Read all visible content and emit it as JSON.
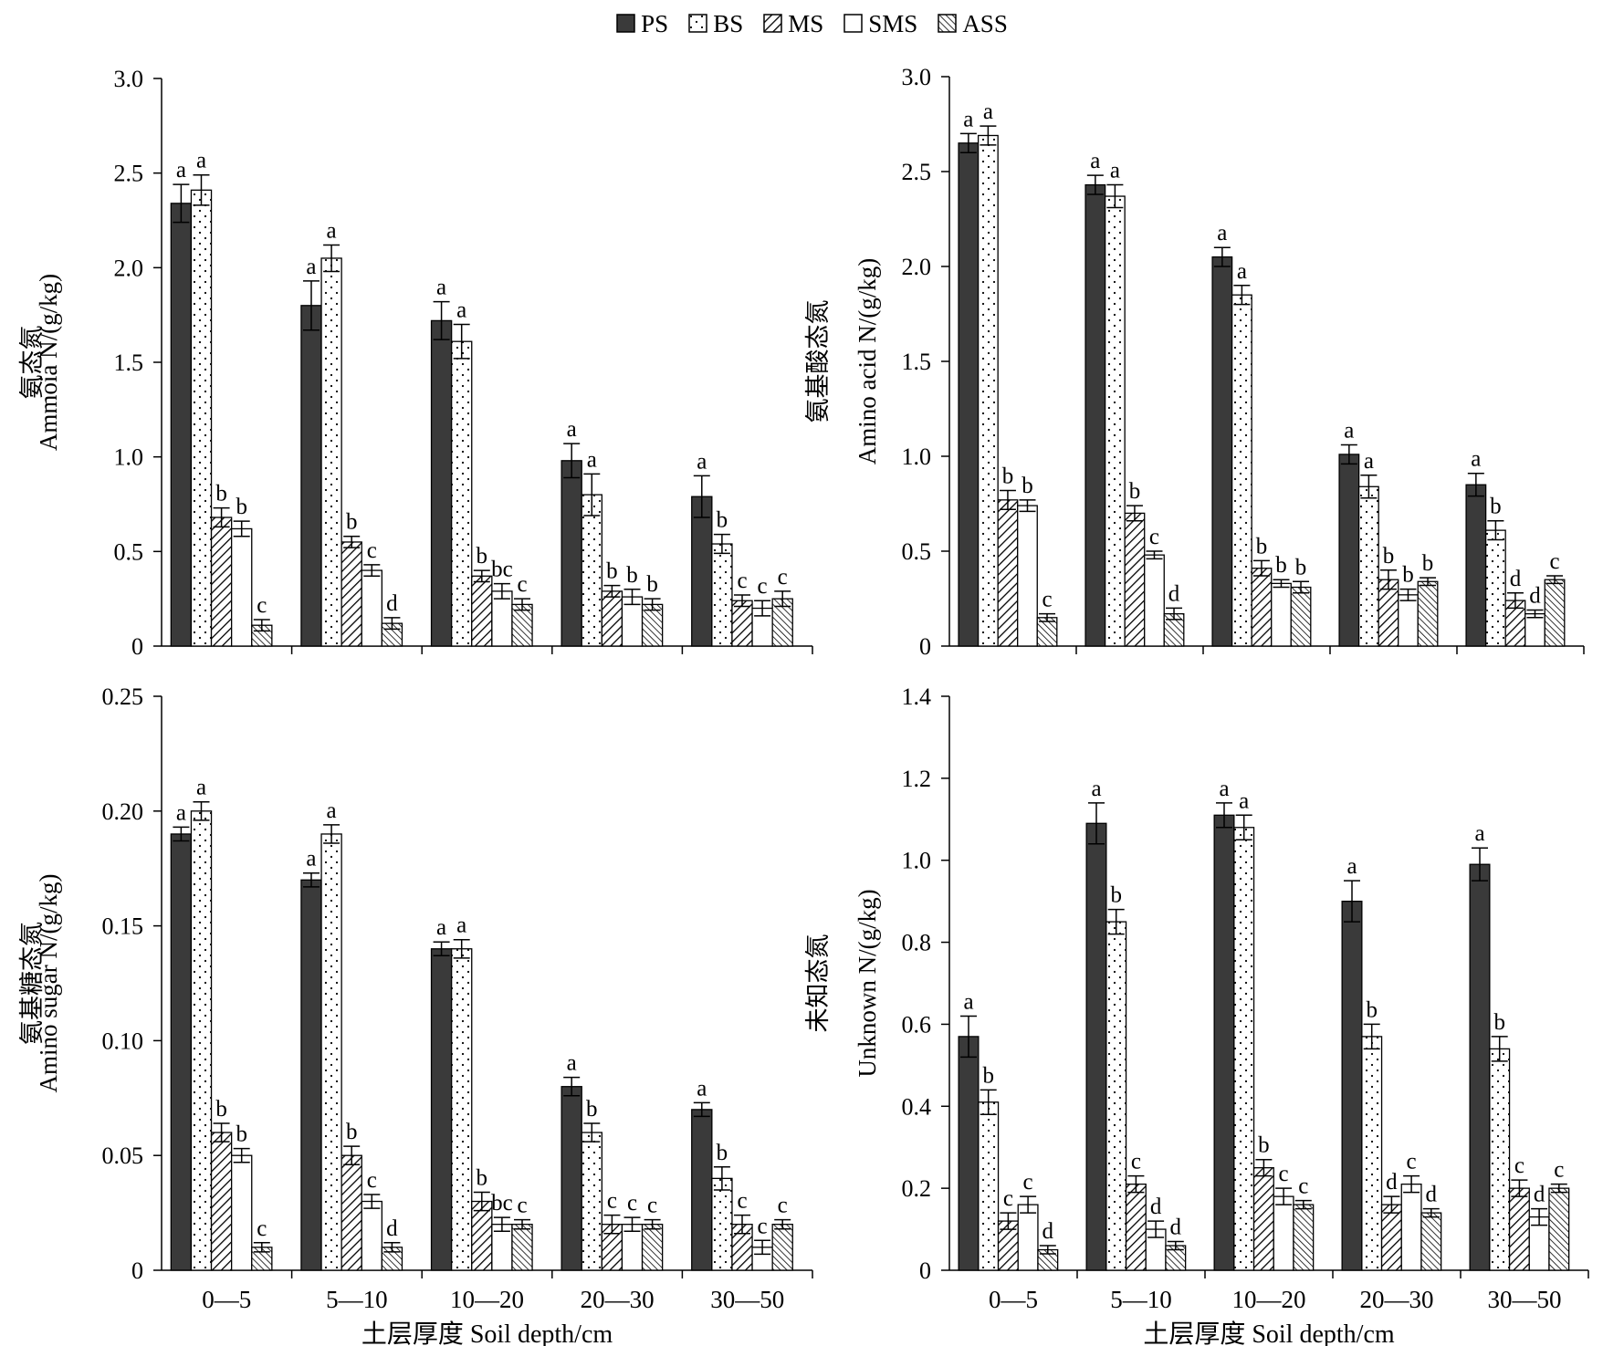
{
  "legend": [
    {
      "label": "PS",
      "pattern": "solid"
    },
    {
      "label": "BS",
      "pattern": "dots"
    },
    {
      "label": "MS",
      "pattern": "diag"
    },
    {
      "label": "SMS",
      "pattern": "white"
    },
    {
      "label": "ASS",
      "pattern": "diag-dense"
    }
  ],
  "colors": {
    "solid_fill": "#3a3a3a",
    "outline": "#000000",
    "background": "#ffffff"
  },
  "chart_data": [
    {
      "type": "bar",
      "ylabel_cn": "氨态氮",
      "ylabel": "Ammoia N/(g/kg)",
      "xlabel": "",
      "categories": [
        "0—5",
        "5—10",
        "10—20",
        "20—30",
        "30—50"
      ],
      "ylim": [
        0,
        3.0
      ],
      "yticks": [
        "0",
        "0.5",
        "1.0",
        "1.5",
        "2.0",
        "2.5",
        "3.0"
      ],
      "series": [
        {
          "name": "PS",
          "values": [
            2.34,
            1.8,
            1.72,
            0.98,
            0.79
          ],
          "errors": [
            0.1,
            0.13,
            0.1,
            0.09,
            0.11
          ],
          "letters": [
            "a",
            "a",
            "a",
            "a",
            "a"
          ]
        },
        {
          "name": "BS",
          "values": [
            2.41,
            2.05,
            1.61,
            0.8,
            0.54
          ],
          "errors": [
            0.08,
            0.07,
            0.09,
            0.11,
            0.05
          ],
          "letters": [
            "a",
            "a",
            "a",
            "a",
            "b"
          ]
        },
        {
          "name": "MS",
          "values": [
            0.68,
            0.55,
            0.37,
            0.29,
            0.24
          ],
          "errors": [
            0.05,
            0.03,
            0.03,
            0.03,
            0.03
          ],
          "letters": [
            "b",
            "b",
            "b",
            "b",
            "c"
          ]
        },
        {
          "name": "SMS",
          "values": [
            0.62,
            0.4,
            0.29,
            0.26,
            0.2
          ],
          "errors": [
            0.04,
            0.03,
            0.04,
            0.04,
            0.04
          ],
          "letters": [
            "b",
            "c",
            "bc",
            "b",
            "c"
          ]
        },
        {
          "name": "ASS",
          "values": [
            0.11,
            0.12,
            0.22,
            0.22,
            0.25
          ],
          "errors": [
            0.03,
            0.03,
            0.03,
            0.03,
            0.04
          ],
          "letters": [
            "c",
            "d",
            "c",
            "b",
            "c"
          ]
        }
      ]
    },
    {
      "type": "bar",
      "ylabel_cn": "氨基酸态氮",
      "ylabel": "Amino acid N/(g/kg)",
      "xlabel": "",
      "categories": [
        "0—5",
        "5—10",
        "10—20",
        "20—30",
        "30—50"
      ],
      "ylim": [
        0,
        3.0
      ],
      "yticks": [
        "0",
        "0.5",
        "1.0",
        "1.5",
        "2.0",
        "2.5",
        "3.0"
      ],
      "series": [
        {
          "name": "PS",
          "values": [
            2.65,
            2.43,
            2.05,
            1.01,
            0.85
          ],
          "errors": [
            0.05,
            0.05,
            0.05,
            0.05,
            0.06
          ],
          "letters": [
            "a",
            "a",
            "a",
            "a",
            "a"
          ]
        },
        {
          "name": "BS",
          "values": [
            2.69,
            2.37,
            1.85,
            0.84,
            0.61
          ],
          "errors": [
            0.05,
            0.06,
            0.05,
            0.06,
            0.05
          ],
          "letters": [
            "a",
            "a",
            "a",
            "a",
            "b"
          ]
        },
        {
          "name": "MS",
          "values": [
            0.77,
            0.7,
            0.41,
            0.35,
            0.24
          ],
          "errors": [
            0.05,
            0.04,
            0.04,
            0.05,
            0.04
          ],
          "letters": [
            "b",
            "b",
            "b",
            "b",
            "d"
          ]
        },
        {
          "name": "SMS",
          "values": [
            0.74,
            0.48,
            0.33,
            0.27,
            0.17
          ],
          "errors": [
            0.03,
            0.02,
            0.02,
            0.03,
            0.02
          ],
          "letters": [
            "b",
            "c",
            "b",
            "b",
            "d"
          ]
        },
        {
          "name": "ASS",
          "values": [
            0.15,
            0.17,
            0.31,
            0.34,
            0.35
          ],
          "errors": [
            0.02,
            0.03,
            0.03,
            0.02,
            0.02
          ],
          "letters": [
            "c",
            "d",
            "b",
            "b",
            "c"
          ]
        }
      ]
    },
    {
      "type": "bar",
      "ylabel_cn": "氨基糖态氮",
      "ylabel": "Amino sugar N/(g/kg)",
      "xlabel": "土层厚度 Soil depth/cm",
      "categories": [
        "0—5",
        "5—10",
        "10—20",
        "20—30",
        "30—50"
      ],
      "ylim": [
        0,
        0.25
      ],
      "yticks": [
        "0",
        "0.05",
        "0.10",
        "0.15",
        "0.20",
        "0.25"
      ],
      "series": [
        {
          "name": "PS",
          "values": [
            0.19,
            0.17,
            0.14,
            0.08,
            0.07
          ],
          "errors": [
            0.003,
            0.003,
            0.003,
            0.004,
            0.003
          ],
          "letters": [
            "a",
            "a",
            "a",
            "a",
            "a"
          ]
        },
        {
          "name": "BS",
          "values": [
            0.2,
            0.19,
            0.14,
            0.06,
            0.04
          ],
          "errors": [
            0.004,
            0.004,
            0.004,
            0.004,
            0.005
          ],
          "letters": [
            "a",
            "a",
            "a",
            "b",
            "b"
          ]
        },
        {
          "name": "MS",
          "values": [
            0.06,
            0.05,
            0.03,
            0.02,
            0.02
          ],
          "errors": [
            0.004,
            0.004,
            0.004,
            0.004,
            0.004
          ],
          "letters": [
            "b",
            "b",
            "b",
            "c",
            "c"
          ]
        },
        {
          "name": "SMS",
          "values": [
            0.05,
            0.03,
            0.02,
            0.02,
            0.01
          ],
          "errors": [
            0.003,
            0.003,
            0.003,
            0.003,
            0.003
          ],
          "letters": [
            "b",
            "c",
            "bc",
            "c",
            "c"
          ]
        },
        {
          "name": "ASS",
          "values": [
            0.01,
            0.01,
            0.02,
            0.02,
            0.02
          ],
          "errors": [
            0.002,
            0.002,
            0.002,
            0.002,
            0.002
          ],
          "letters": [
            "c",
            "d",
            "c",
            "c",
            "c"
          ]
        }
      ]
    },
    {
      "type": "bar",
      "ylabel_cn": "未知态氮",
      "ylabel": "Unknown N/(g/kg)",
      "xlabel": "土层厚度 Soil depth/cm",
      "categories": [
        "0—5",
        "5—10",
        "10—20",
        "20—30",
        "30—50"
      ],
      "ylim": [
        0,
        1.4
      ],
      "yticks": [
        "0",
        "0.2",
        "0.4",
        "0.6",
        "0.8",
        "1.0",
        "1.2",
        "1.4"
      ],
      "series": [
        {
          "name": "PS",
          "values": [
            0.57,
            1.09,
            1.11,
            0.9,
            0.99
          ],
          "errors": [
            0.05,
            0.05,
            0.03,
            0.05,
            0.04
          ],
          "letters": [
            "a",
            "a",
            "a",
            "a",
            "a"
          ]
        },
        {
          "name": "BS",
          "values": [
            0.41,
            0.85,
            1.08,
            0.57,
            0.54
          ],
          "errors": [
            0.03,
            0.03,
            0.03,
            0.03,
            0.03
          ],
          "letters": [
            "b",
            "b",
            "a",
            "b",
            "b"
          ]
        },
        {
          "name": "MS",
          "values": [
            0.12,
            0.21,
            0.25,
            0.16,
            0.2
          ],
          "errors": [
            0.02,
            0.02,
            0.02,
            0.02,
            0.02
          ],
          "letters": [
            "c",
            "c",
            "b",
            "d",
            "c"
          ]
        },
        {
          "name": "SMS",
          "values": [
            0.16,
            0.1,
            0.18,
            0.21,
            0.13
          ],
          "errors": [
            0.02,
            0.02,
            0.02,
            0.02,
            0.02
          ],
          "letters": [
            "c",
            "d",
            "c",
            "c",
            "d"
          ]
        },
        {
          "name": "ASS",
          "values": [
            0.05,
            0.06,
            0.16,
            0.14,
            0.2
          ],
          "errors": [
            0.01,
            0.01,
            0.01,
            0.01,
            0.01
          ],
          "letters": [
            "d",
            "d",
            "c",
            "d",
            "c"
          ]
        }
      ]
    }
  ]
}
